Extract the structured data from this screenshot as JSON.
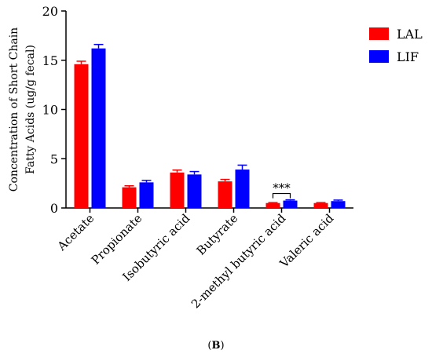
{
  "chart_data": {
    "type": "bar",
    "ylabel_line1": "Concentration of Short Chain",
    "ylabel_line2": "Fatty Acids (ug/g fecal)",
    "ylim": [
      0,
      20
    ],
    "yticks": [
      0,
      5,
      10,
      15,
      20
    ],
    "categories": [
      "Acetate",
      "Propionate",
      "Isobutyric acid",
      "Butyrate",
      "2-methyl butyric acid",
      "Valeric acid"
    ],
    "series": [
      {
        "name": "LAL",
        "color": "#ff0000",
        "values": [
          14.6,
          2.1,
          3.6,
          2.7,
          0.5,
          0.5
        ],
        "errors": [
          0.3,
          0.15,
          0.25,
          0.2,
          0.05,
          0.05
        ]
      },
      {
        "name": "LIF",
        "color": "#0000ff",
        "values": [
          16.2,
          2.6,
          3.4,
          3.9,
          0.75,
          0.7
        ],
        "errors": [
          0.4,
          0.2,
          0.3,
          0.45,
          0.08,
          0.1
        ]
      }
    ],
    "annotations": [
      {
        "category": "2-methyl butyric acid",
        "text": "***"
      }
    ],
    "legend_position": "top-right",
    "grid": false
  },
  "panel": {
    "open": "(",
    "letter": "B",
    "close": ")"
  }
}
